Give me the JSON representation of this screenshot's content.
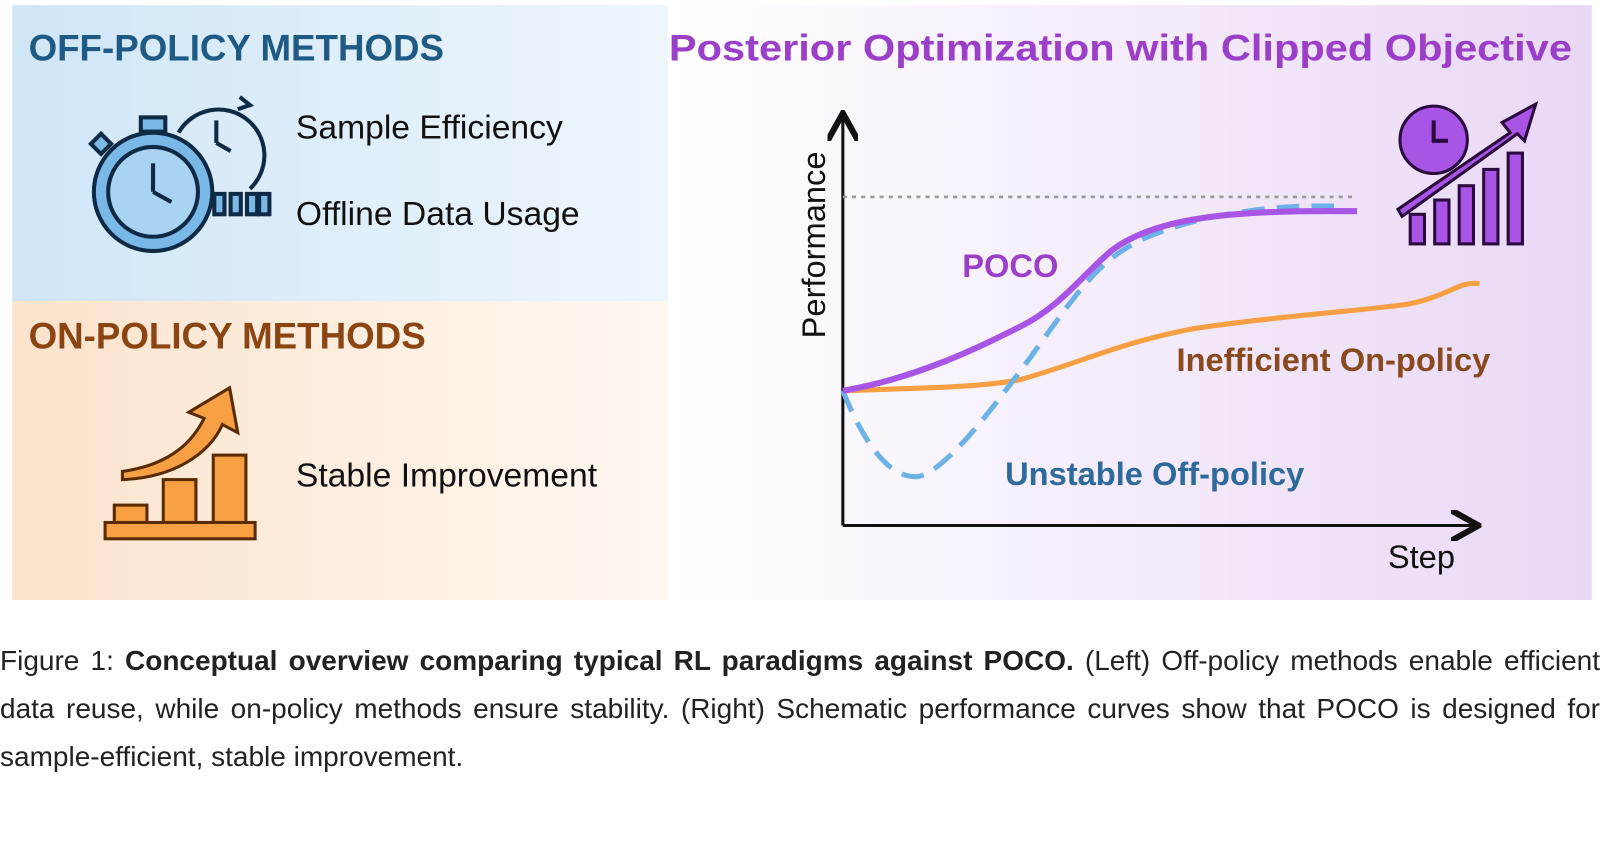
{
  "left": {
    "off_policy": {
      "title": "OFF-POLICY METHODS",
      "items": [
        "Sample Efficiency",
        "Offline Data Usage"
      ]
    },
    "on_policy": {
      "title": "ON-POLICY METHODS",
      "items": [
        "Stable Improvement"
      ]
    }
  },
  "right": {
    "title": "Posterior Optimization with Clipped Objective",
    "y_label": "Performance",
    "x_label": "Step",
    "curves": [
      {
        "label": "POCO"
      },
      {
        "label": "Inefficient On-policy"
      },
      {
        "label": "Unstable Off-policy"
      }
    ]
  },
  "caption": {
    "label": "Figure 1:",
    "bold": "Conceptual overview comparing typical RL paradigms against POCO.",
    "text": "(Left) Off-policy methods enable efficient data reuse, while on-policy methods ensure stability. (Right) Schematic performance curves show that POCO is designed for sample-efficient, stable improvement."
  }
}
